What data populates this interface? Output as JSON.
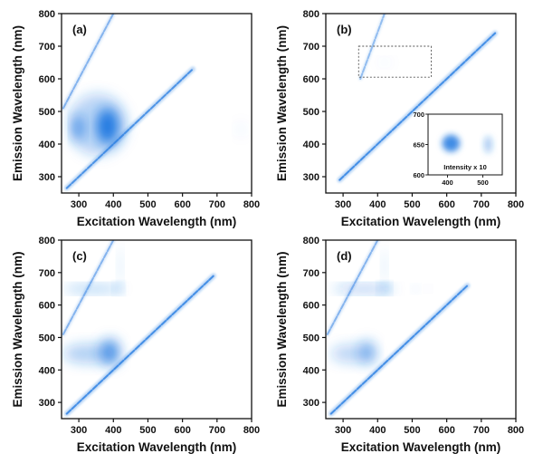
{
  "chart_data": [
    {
      "type": "heatmap",
      "panel_label": "(a)",
      "xlabel": "Excitation Wavelength (nm)",
      "ylabel": "Emission Wavelength (nm)",
      "xlim": [
        250,
        800
      ],
      "ylim": [
        250,
        800
      ],
      "xticks": [
        300,
        400,
        500,
        600,
        700,
        800
      ],
      "yticks": [
        300,
        400,
        500,
        600,
        700,
        800
      ],
      "lines": [
        {
          "name": "first-order scatter",
          "x": [
            265,
            630
          ],
          "y": [
            265,
            630
          ],
          "width": 9,
          "intensity": 0.7
        },
        {
          "name": "second-order scatter",
          "x": [
            255,
            400
          ],
          "y": [
            510,
            800
          ],
          "width": 7,
          "intensity": 0.45
        }
      ],
      "blobs": [
        {
          "name": "emission peak 1",
          "x": 298,
          "y": 450,
          "rx": 14,
          "ry": 40,
          "intensity": 0.85
        },
        {
          "name": "emission peak 2",
          "x": 383,
          "y": 455,
          "rx": 32,
          "ry": 55,
          "intensity": 1.0
        },
        {
          "name": "broad halo",
          "x": 355,
          "y": 460,
          "rx": 85,
          "ry": 95,
          "intensity": 0.3
        },
        {
          "name": "weak feature",
          "x": 770,
          "y": 445,
          "rx": 12,
          "ry": 22,
          "intensity": 0.08
        }
      ]
    },
    {
      "type": "heatmap",
      "panel_label": "(b)",
      "xlabel": "Excitation Wavelength (nm)",
      "ylabel": "Emission Wavelength (nm)",
      "xlim": [
        250,
        800
      ],
      "ylim": [
        250,
        800
      ],
      "xticks": [
        300,
        400,
        500,
        600,
        700,
        800
      ],
      "yticks": [
        300,
        400,
        500,
        600,
        700,
        800
      ],
      "lines": [
        {
          "name": "first-order scatter",
          "x": [
            290,
            740
          ],
          "y": [
            290,
            740
          ],
          "width": 9,
          "intensity": 0.75
        },
        {
          "name": "second-order scatter",
          "x": [
            350,
            420
          ],
          "y": [
            600,
            800
          ],
          "width": 6,
          "intensity": 0.4
        }
      ],
      "blobs": [
        {
          "name": "faint emission",
          "x": 420,
          "y": 650,
          "rx": 20,
          "ry": 10,
          "intensity": 0.07
        }
      ],
      "zoom_box": {
        "x": [
          345,
          555
        ],
        "y": [
          605,
          700
        ]
      },
      "inset": {
        "xlim": [
          345,
          555
        ],
        "ylim": [
          600,
          700
        ],
        "xticks": [
          400,
          500
        ],
        "yticks": [
          600,
          650,
          700
        ],
        "note": "Intensity x 10",
        "blobs": [
          {
            "name": "inset peak 1",
            "x": 410,
            "y": 652,
            "rx": 25,
            "ry": 14,
            "intensity": 0.85
          },
          {
            "name": "inset peak 2",
            "x": 515,
            "y": 650,
            "rx": 12,
            "ry": 14,
            "intensity": 0.35
          }
        ]
      }
    },
    {
      "type": "heatmap",
      "panel_label": "(c)",
      "xlabel": "Excitation Wavelength (nm)",
      "ylabel": "Emission Wavelength (nm)",
      "xlim": [
        250,
        800
      ],
      "ylim": [
        250,
        800
      ],
      "xticks": [
        300,
        400,
        500,
        600,
        700,
        800
      ],
      "yticks": [
        300,
        400,
        500,
        600,
        700,
        800
      ],
      "lines": [
        {
          "name": "first-order scatter",
          "x": [
            265,
            690
          ],
          "y": [
            265,
            690
          ],
          "width": 9,
          "intensity": 0.75
        },
        {
          "name": "second-order scatter",
          "x": [
            255,
            400
          ],
          "y": [
            510,
            800
          ],
          "width": 7,
          "intensity": 0.45
        }
      ],
      "blobs": [
        {
          "name": "emission 450 band",
          "x": 330,
          "y": 450,
          "rx": 75,
          "ry": 30,
          "intensity": 0.35
        },
        {
          "name": "emission peak",
          "x": 390,
          "y": 455,
          "rx": 28,
          "ry": 40,
          "intensity": 0.75
        },
        {
          "name": "red band",
          "x": 340,
          "y": 650,
          "rx": 85,
          "ry": 10,
          "intensity": 0.4
        },
        {
          "name": "red peak",
          "x": 415,
          "y": 652,
          "rx": 10,
          "ry": 12,
          "intensity": 0.55
        },
        {
          "name": "upper streak",
          "x": 420,
          "y": 720,
          "rx": 6,
          "ry": 60,
          "intensity": 0.18
        }
      ]
    },
    {
      "type": "heatmap",
      "panel_label": "(d)",
      "xlabel": "Excitation Wavelength (nm)",
      "ylabel": "Emission Wavelength (nm)",
      "xlim": [
        250,
        800
      ],
      "ylim": [
        250,
        800
      ],
      "xticks": [
        300,
        400,
        500,
        600,
        700,
        800
      ],
      "yticks": [
        300,
        400,
        500,
        600,
        700,
        800
      ],
      "lines": [
        {
          "name": "first-order scatter",
          "x": [
            265,
            660
          ],
          "y": [
            265,
            660
          ],
          "width": 9,
          "intensity": 0.75
        },
        {
          "name": "second-order scatter",
          "x": [
            255,
            400
          ],
          "y": [
            510,
            800
          ],
          "width": 7,
          "intensity": 0.45
        }
      ],
      "blobs": [
        {
          "name": "emission 450 band",
          "x": 330,
          "y": 450,
          "rx": 65,
          "ry": 28,
          "intensity": 0.3
        },
        {
          "name": "emission peak",
          "x": 370,
          "y": 455,
          "rx": 22,
          "ry": 35,
          "intensity": 0.5
        },
        {
          "name": "red band",
          "x": 360,
          "y": 650,
          "rx": 90,
          "ry": 10,
          "intensity": 0.45
        },
        {
          "name": "red peak",
          "x": 420,
          "y": 652,
          "rx": 12,
          "ry": 12,
          "intensity": 0.65
        },
        {
          "name": "red spot 1",
          "x": 510,
          "y": 650,
          "rx": 8,
          "ry": 8,
          "intensity": 0.25
        },
        {
          "name": "red spot 2",
          "x": 545,
          "y": 650,
          "rx": 7,
          "ry": 7,
          "intensity": 0.15
        },
        {
          "name": "upper streak",
          "x": 420,
          "y": 720,
          "rx": 6,
          "ry": 55,
          "intensity": 0.18
        }
      ]
    }
  ]
}
